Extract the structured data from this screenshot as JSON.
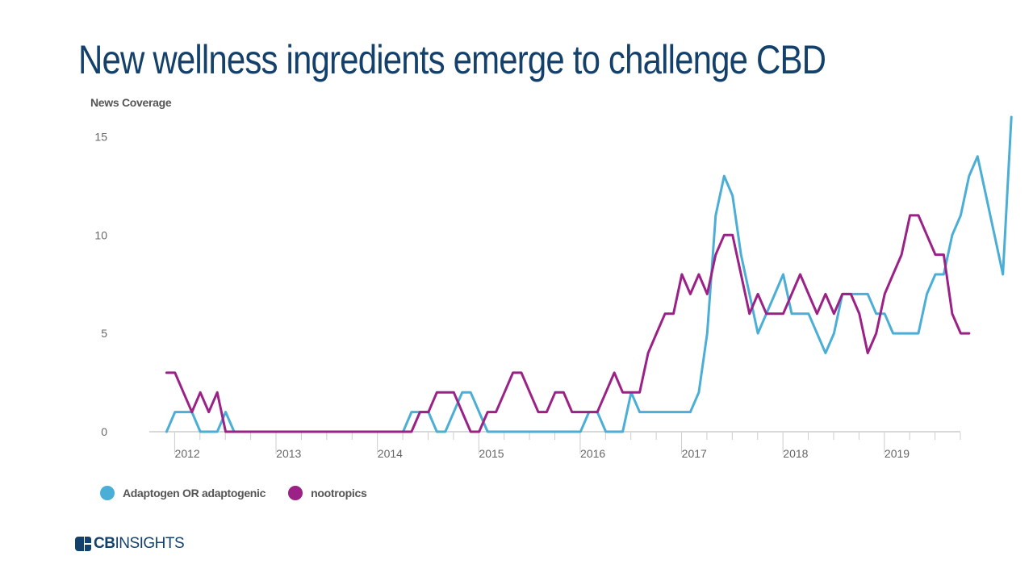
{
  "page": {
    "title": "New wellness ingredients emerge to challenge CBD",
    "brand_bold": "CB",
    "brand_light": "INSIGHTS",
    "brand_color": "#14416b"
  },
  "chart_data": {
    "type": "line",
    "ylabel": "News Coverage",
    "xlabel": "",
    "ylim": [
      0,
      16
    ],
    "yticks": [
      0,
      5,
      10,
      15
    ],
    "xlim": [
      2011.92,
      2019.58
    ],
    "year_labels": [
      "2012",
      "2013",
      "2014",
      "2015",
      "2016",
      "2017",
      "2018",
      "2019"
    ],
    "x_start": 2011.92,
    "x_step": 0.08333,
    "legend_position": "bottom-left",
    "series": [
      {
        "name": "Adaptogen OR adaptogenic",
        "color": "#4aaed6",
        "values": [
          0,
          1,
          1,
          1,
          0,
          0,
          0,
          1,
          0,
          0,
          0,
          0,
          0,
          0,
          0,
          0,
          0,
          0,
          0,
          0,
          0,
          0,
          0,
          0,
          0,
          0,
          0,
          0,
          0,
          1,
          1,
          1,
          0,
          0,
          1,
          2,
          2,
          1,
          0,
          0,
          0,
          0,
          0,
          0,
          0,
          0,
          0,
          0,
          0,
          0,
          1,
          1,
          0,
          0,
          0,
          2,
          1,
          1,
          1,
          1,
          1,
          1,
          1,
          2,
          5,
          11,
          13,
          12,
          9,
          7,
          5,
          6,
          7,
          8,
          6,
          6,
          6,
          5,
          4,
          5,
          7,
          7,
          7,
          7,
          6,
          6,
          5,
          5,
          5,
          5,
          7,
          8,
          8,
          10,
          11,
          13,
          14,
          12,
          10,
          8,
          16
        ]
      },
      {
        "name": "nootropics",
        "color": "#9b2186",
        "values": [
          3,
          3,
          2,
          1,
          2,
          1,
          2,
          0,
          0,
          0,
          0,
          0,
          0,
          0,
          0,
          0,
          0,
          0,
          0,
          0,
          0,
          0,
          0,
          0,
          0,
          0,
          0,
          0,
          0,
          0,
          1,
          1,
          2,
          2,
          2,
          1,
          0,
          0,
          1,
          1,
          2,
          3,
          3,
          2,
          1,
          1,
          2,
          2,
          1,
          1,
          1,
          1,
          2,
          3,
          2,
          2,
          2,
          4,
          5,
          6,
          6,
          8,
          7,
          8,
          7,
          9,
          10,
          10,
          8,
          6,
          7,
          6,
          6,
          6,
          7,
          8,
          7,
          6,
          7,
          6,
          7,
          7,
          6,
          4,
          5,
          7,
          8,
          9,
          11,
          11,
          10,
          9,
          9,
          6,
          5,
          5
        ]
      }
    ]
  }
}
